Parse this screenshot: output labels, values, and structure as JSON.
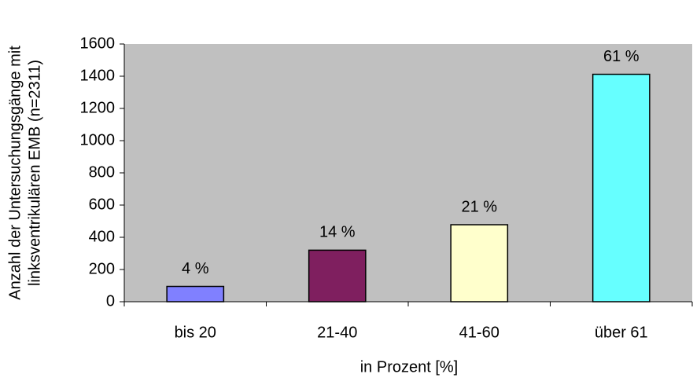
{
  "chart_data": {
    "type": "bar",
    "y_label": [
      "Anzahl der Untersuchungsgänge mit",
      "linksventrikulären EMB (n=2311)"
    ],
    "x_label": "in Prozent [%]",
    "categories": [
      "bis 20",
      "21-40",
      "41-60",
      "über 61"
    ],
    "values": [
      95,
      320,
      478,
      1412
    ],
    "value_labels": [
      "4 %",
      "14 %",
      "21 %",
      "61 %"
    ],
    "colors": [
      "#8080ff",
      "#7f1f5f",
      "#ffffcc",
      "#66ffff"
    ],
    "ylim": [
      0,
      1600
    ],
    "yticks": [
      0,
      200,
      400,
      600,
      800,
      1000,
      1200,
      1400,
      1600
    ],
    "background": "#c0c0c0"
  }
}
